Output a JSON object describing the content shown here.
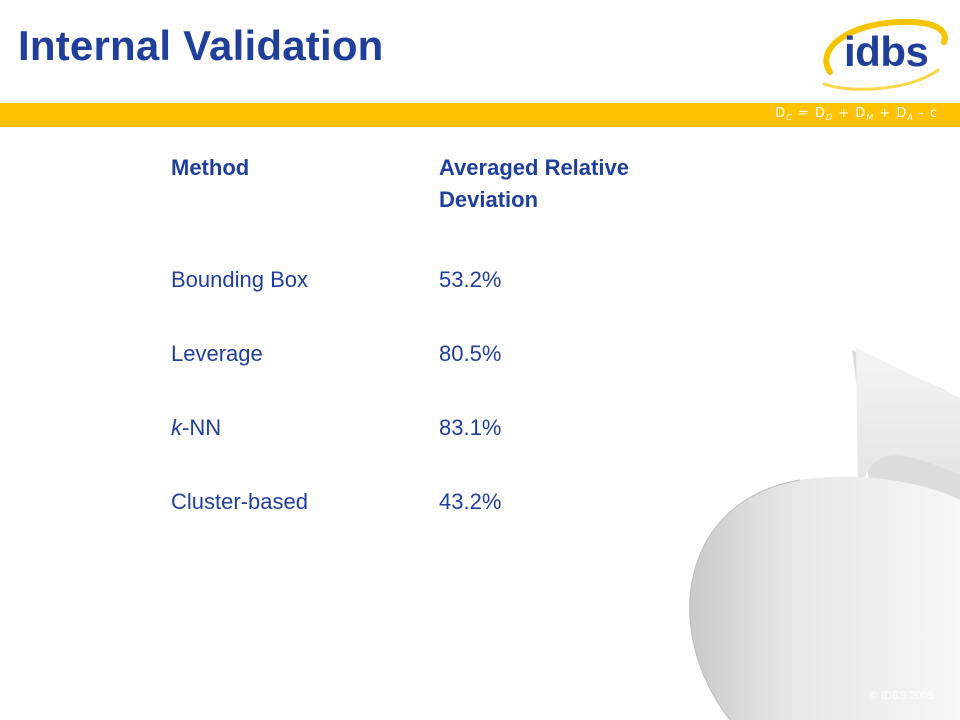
{
  "slide": {
    "title": "Internal Validation",
    "logo_text": "idbs",
    "formula": {
      "text": "D",
      "sub_c": "C",
      "sub_d": "D",
      "sub_m": "M",
      "sub_a": "A",
      "parts": [
        " = D",
        " + D",
        " + D",
        " - c"
      ]
    },
    "copyright": "© IDBS 2005"
  },
  "table": {
    "headers": {
      "method": "Method",
      "value": "Averaged Relative Deviation"
    },
    "rows": [
      {
        "method": "Bounding Box",
        "value": "53.2%"
      },
      {
        "method": "Leverage",
        "value": "80.5%"
      },
      {
        "method_italic": "k",
        "method_rest": "-NN",
        "value": "83.1%"
      },
      {
        "method": "Cluster-based",
        "value": "43.2%"
      }
    ]
  },
  "colors": {
    "title": "#1f3f9a",
    "band": "#ffc200",
    "logo_swoosh": "#f5c400"
  }
}
